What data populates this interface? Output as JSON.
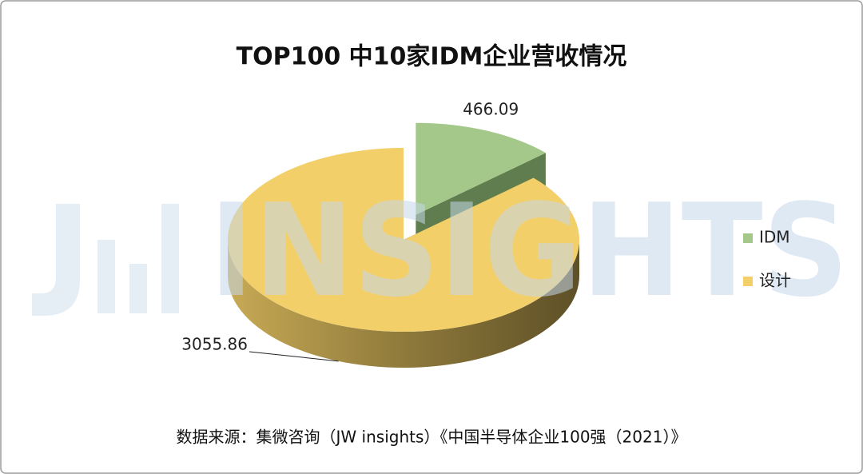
{
  "chart_data": {
    "type": "pie3d",
    "title": "TOP100 中10家IDM企业营收情况",
    "categories": [
      "IDM",
      "设计"
    ],
    "values": [
      466.09,
      3055.86
    ],
    "colors": [
      "#a3c889",
      "#f3cf6a"
    ],
    "exploded": [
      true,
      false
    ],
    "legend": "right",
    "source": "数据来源：集微咨询（JW insights）《中国半导体企业100强（2021）》",
    "watermark": "INSIGHTS"
  }
}
